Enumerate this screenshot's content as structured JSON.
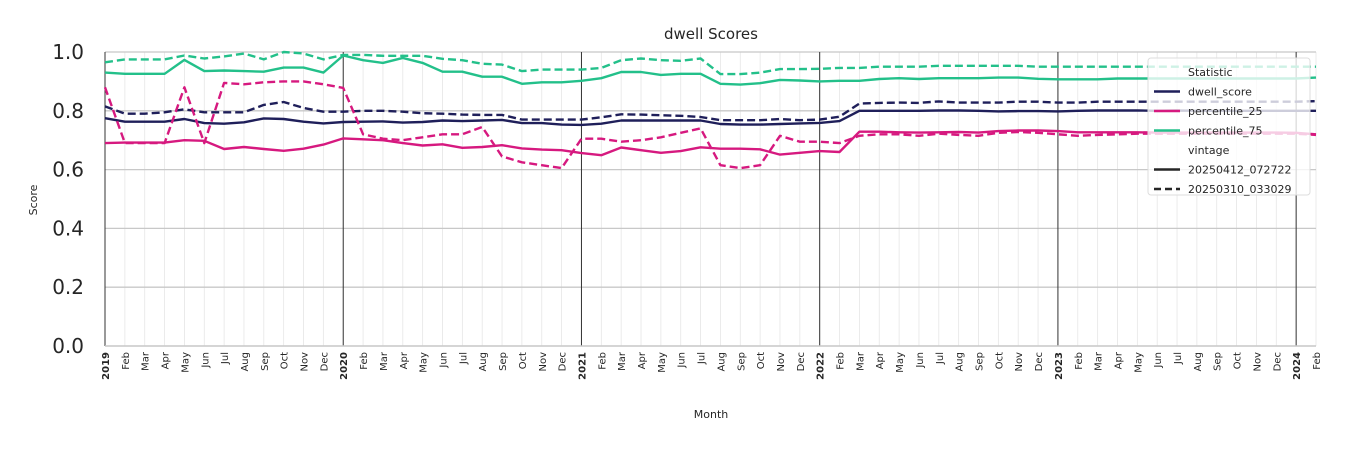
{
  "chart_data": {
    "type": "line",
    "title": "dwell Scores",
    "xlabel": "Month",
    "ylabel": "Score",
    "ylim": [
      0.0,
      1.0
    ],
    "yticks": [
      "0.0",
      "0.2",
      "0.4",
      "0.6",
      "0.8",
      "1.0"
    ],
    "x_start": "2019-01",
    "x_end": "2024-02",
    "x_tick_labels": [
      "2019",
      "Feb",
      "Mar",
      "Apr",
      "May",
      "Jun",
      "Jul",
      "Aug",
      "Sep",
      "Oct",
      "Nov",
      "Dec",
      "2020",
      "Feb",
      "Mar",
      "Apr",
      "May",
      "Jun",
      "Jul",
      "Aug",
      "Sep",
      "Oct",
      "Nov",
      "Dec",
      "2021",
      "Feb",
      "Mar",
      "Apr",
      "May",
      "Jun",
      "Jul",
      "Aug",
      "Sep",
      "Oct",
      "Nov",
      "Dec",
      "2022",
      "Feb",
      "Mar",
      "Apr",
      "May",
      "Jun",
      "Jul",
      "Aug",
      "Sep",
      "Oct",
      "Nov",
      "Dec",
      "2023",
      "Feb",
      "Mar",
      "Apr",
      "May",
      "Jun",
      "Jul",
      "Aug",
      "Sep",
      "Oct",
      "Nov",
      "Dec",
      "2024",
      "Feb"
    ],
    "year_labels": [
      "2019",
      "2020",
      "2021",
      "2022",
      "2023",
      "2024"
    ],
    "legend": {
      "placement": "top-right",
      "title_statistic": "Statistic",
      "title_vintage": "vintage",
      "statistic_entries": [
        {
          "name": "dwell_score",
          "color": "#1f1f5a"
        },
        {
          "name": "percentile_25",
          "color": "#d6197f"
        },
        {
          "name": "percentile_75",
          "color": "#23c08a"
        }
      ],
      "vintage_entries": [
        {
          "name": "20250412_072722",
          "style": "solid"
        },
        {
          "name": "20250310_033029",
          "style": "dashed"
        }
      ]
    },
    "series": [
      {
        "name": "dwell_score",
        "vintage": "20250412_072722",
        "color": "#1f1f5a",
        "style": "solid",
        "values": [
          0.775,
          0.763,
          0.763,
          0.763,
          0.772,
          0.758,
          0.756,
          0.761,
          0.774,
          0.772,
          0.763,
          0.757,
          0.762,
          0.763,
          0.764,
          0.76,
          0.762,
          0.767,
          0.765,
          0.767,
          0.769,
          0.758,
          0.758,
          0.753,
          0.752,
          0.756,
          0.767,
          0.767,
          0.767,
          0.767,
          0.767,
          0.755,
          0.753,
          0.753,
          0.755,
          0.757,
          0.759,
          0.765,
          0.8,
          0.8,
          0.8,
          0.8,
          0.801,
          0.801,
          0.8,
          0.798,
          0.799,
          0.799,
          0.798,
          0.8,
          0.801,
          0.801,
          0.801,
          0.8,
          0.801,
          0.8,
          0.8,
          0.8,
          0.8,
          0.8,
          0.8,
          0.8
        ]
      },
      {
        "name": "percentile_25",
        "vintage": "20250412_072722",
        "color": "#d6197f",
        "style": "solid",
        "values": [
          0.69,
          0.692,
          0.692,
          0.692,
          0.7,
          0.698,
          0.67,
          0.677,
          0.67,
          0.664,
          0.671,
          0.685,
          0.706,
          0.703,
          0.7,
          0.69,
          0.682,
          0.686,
          0.674,
          0.677,
          0.683,
          0.672,
          0.668,
          0.666,
          0.656,
          0.649,
          0.675,
          0.666,
          0.657,
          0.663,
          0.676,
          0.671,
          0.671,
          0.669,
          0.651,
          0.657,
          0.663,
          0.66,
          0.729,
          0.729,
          0.727,
          0.726,
          0.727,
          0.728,
          0.726,
          0.731,
          0.733,
          0.733,
          0.731,
          0.727,
          0.727,
          0.727,
          0.727,
          0.726,
          0.726,
          0.726,
          0.726,
          0.726,
          0.726,
          0.726,
          0.725,
          0.72
        ]
      },
      {
        "name": "percentile_75",
        "vintage": "20250412_072722",
        "color": "#23c08a",
        "style": "solid",
        "values": [
          0.93,
          0.926,
          0.926,
          0.926,
          0.973,
          0.935,
          0.937,
          0.935,
          0.933,
          0.947,
          0.947,
          0.93,
          0.988,
          0.972,
          0.963,
          0.98,
          0.963,
          0.933,
          0.933,
          0.916,
          0.916,
          0.892,
          0.897,
          0.897,
          0.902,
          0.911,
          0.932,
          0.932,
          0.922,
          0.926,
          0.926,
          0.892,
          0.889,
          0.894,
          0.905,
          0.903,
          0.9,
          0.902,
          0.902,
          0.908,
          0.911,
          0.908,
          0.911,
          0.911,
          0.911,
          0.913,
          0.913,
          0.909,
          0.907,
          0.907,
          0.907,
          0.91,
          0.91,
          0.91,
          0.91,
          0.91,
          0.91,
          0.91,
          0.91,
          0.91,
          0.91,
          0.913
        ]
      },
      {
        "name": "dwell_score",
        "vintage": "20250310_033029",
        "color": "#1f1f5a",
        "style": "dashed",
        "values": [
          0.815,
          0.79,
          0.79,
          0.795,
          0.805,
          0.795,
          0.795,
          0.795,
          0.82,
          0.83,
          0.81,
          0.797,
          0.797,
          0.8,
          0.8,
          0.797,
          0.792,
          0.79,
          0.787,
          0.786,
          0.786,
          0.77,
          0.77,
          0.77,
          0.77,
          0.778,
          0.788,
          0.787,
          0.785,
          0.783,
          0.779,
          0.768,
          0.768,
          0.768,
          0.772,
          0.768,
          0.77,
          0.78,
          0.825,
          0.827,
          0.828,
          0.827,
          0.832,
          0.828,
          0.828,
          0.828,
          0.831,
          0.831,
          0.828,
          0.828,
          0.831,
          0.831,
          0.831,
          0.831,
          0.831,
          0.831,
          0.831,
          0.831,
          0.831,
          0.831,
          0.831,
          0.833
        ]
      },
      {
        "name": "percentile_25",
        "vintage": "20250310_033029",
        "color": "#d6197f",
        "style": "dashed",
        "values": [
          0.88,
          0.69,
          0.69,
          0.69,
          0.88,
          0.69,
          0.895,
          0.89,
          0.897,
          0.9,
          0.9,
          0.89,
          0.878,
          0.72,
          0.705,
          0.7,
          0.71,
          0.72,
          0.72,
          0.745,
          0.645,
          0.625,
          0.615,
          0.605,
          0.705,
          0.705,
          0.695,
          0.7,
          0.71,
          0.725,
          0.74,
          0.615,
          0.605,
          0.615,
          0.715,
          0.695,
          0.695,
          0.69,
          0.715,
          0.72,
          0.72,
          0.715,
          0.722,
          0.718,
          0.715,
          0.725,
          0.728,
          0.725,
          0.72,
          0.715,
          0.718,
          0.72,
          0.722,
          0.722,
          0.722,
          0.722,
          0.722,
          0.722,
          0.722,
          0.722,
          0.722,
          0.718
        ]
      },
      {
        "name": "percentile_75",
        "vintage": "20250310_033029",
        "color": "#23c08a",
        "style": "dashed",
        "values": [
          0.965,
          0.975,
          0.975,
          0.975,
          0.988,
          0.978,
          0.985,
          0.995,
          0.975,
          1.0,
          0.995,
          0.975,
          0.99,
          0.99,
          0.987,
          0.987,
          0.987,
          0.977,
          0.972,
          0.96,
          0.957,
          0.935,
          0.94,
          0.94,
          0.94,
          0.946,
          0.972,
          0.978,
          0.972,
          0.97,
          0.978,
          0.925,
          0.925,
          0.93,
          0.942,
          0.942,
          0.943,
          0.946,
          0.946,
          0.95,
          0.95,
          0.95,
          0.953,
          0.953,
          0.953,
          0.953,
          0.953,
          0.95,
          0.95,
          0.95,
          0.95,
          0.95,
          0.95,
          0.95,
          0.95,
          0.95,
          0.95,
          0.95,
          0.95,
          0.95,
          0.95,
          0.95
        ]
      }
    ]
  }
}
